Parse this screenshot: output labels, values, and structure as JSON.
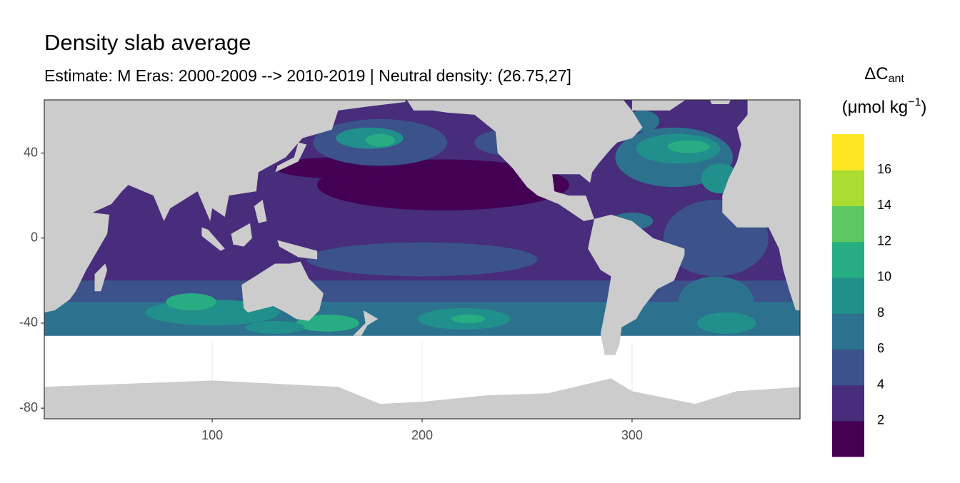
{
  "chart_data": {
    "type": "map",
    "title": "Density slab average",
    "subtitle": "Estimate: M Eras: 2000-2009 --> 2010-2019 | Neutral density: (26.75,27]",
    "xlim": [
      20,
      380
    ],
    "ylim": [
      -85,
      65
    ],
    "xticks": [
      100,
      200,
      300
    ],
    "yticks": [
      40,
      0,
      -40,
      -80
    ],
    "grid": true,
    "land_color": "#CCCCCC",
    "legend": {
      "title": [
        "ΔC",
        "ant"
      ],
      "unit": [
        "(μmol kg",
        "−1",
        ")"
      ],
      "limits": [
        0,
        18
      ],
      "breaks": [
        2,
        4,
        6,
        8,
        10,
        12,
        14,
        16
      ],
      "colors": [
        "#440154",
        "#472D7B",
        "#3B528B",
        "#2C728E",
        "#21908C",
        "#27AD81",
        "#5DC863",
        "#AADC32",
        "#FDE725"
      ]
    }
  }
}
